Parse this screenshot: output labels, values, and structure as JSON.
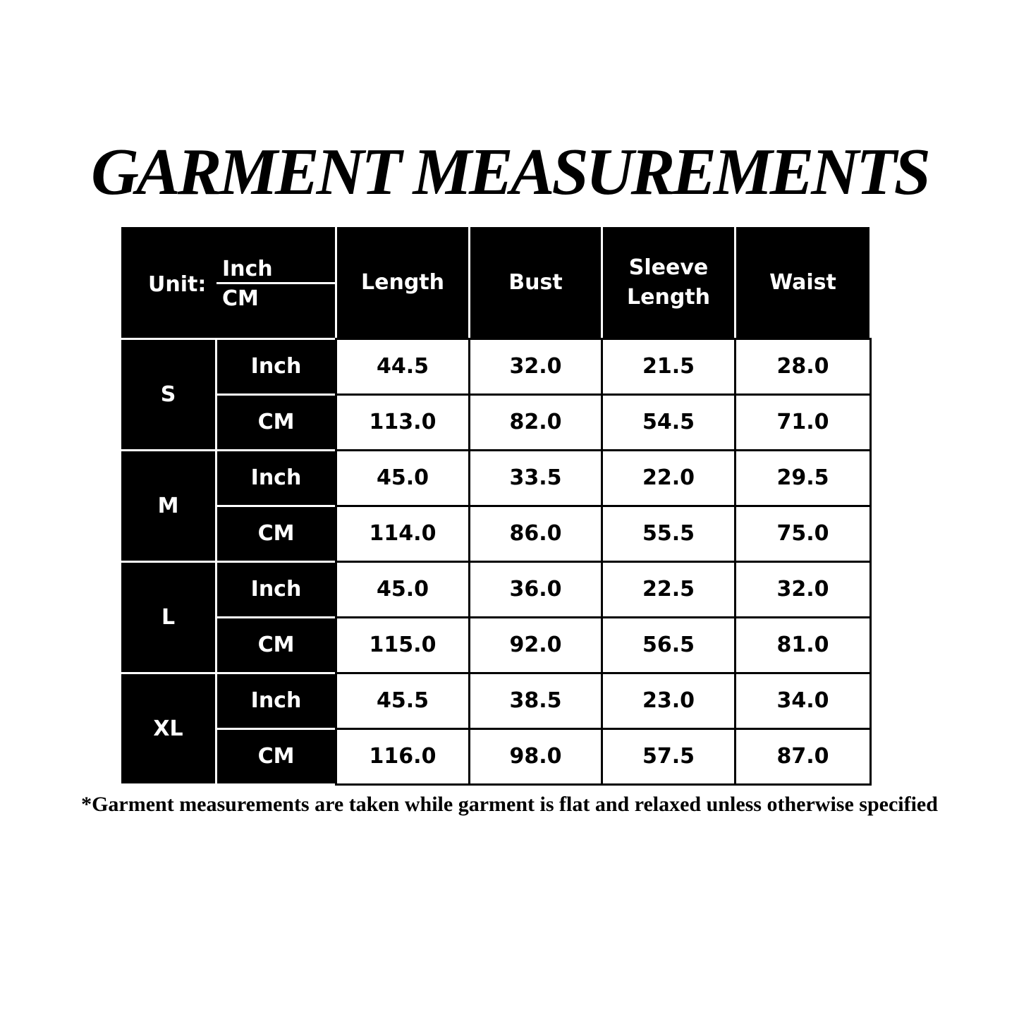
{
  "title": "GARMENT MEASUREMENTS",
  "table": {
    "unit_label": "Unit:",
    "unit_top": "Inch",
    "unit_bottom": "CM",
    "columns": [
      "Length",
      "Bust",
      "Sleeve Length",
      "Waist"
    ],
    "rows": [
      {
        "size": "S",
        "lines": [
          {
            "unit": "Inch",
            "values": [
              "44.5",
              "32.0",
              "21.5",
              "28.0"
            ]
          },
          {
            "unit": "CM",
            "values": [
              "113.0",
              "82.0",
              "54.5",
              "71.0"
            ]
          }
        ]
      },
      {
        "size": "M",
        "lines": [
          {
            "unit": "Inch",
            "values": [
              "45.0",
              "33.5",
              "22.0",
              "29.5"
            ]
          },
          {
            "unit": "CM",
            "values": [
              "114.0",
              "86.0",
              "55.5",
              "75.0"
            ]
          }
        ]
      },
      {
        "size": "L",
        "lines": [
          {
            "unit": "Inch",
            "values": [
              "45.0",
              "36.0",
              "22.5",
              "32.0"
            ]
          },
          {
            "unit": "CM",
            "values": [
              "115.0",
              "92.0",
              "56.5",
              "81.0"
            ]
          }
        ]
      },
      {
        "size": "XL",
        "lines": [
          {
            "unit": "Inch",
            "values": [
              "45.5",
              "38.5",
              "23.0",
              "34.0"
            ]
          },
          {
            "unit": "CM",
            "values": [
              "116.0",
              "98.0",
              "57.5",
              "87.0"
            ]
          }
        ]
      }
    ]
  },
  "footnote": "*Garment measurements are taken while garment is flat and relaxed unless otherwise specified"
}
